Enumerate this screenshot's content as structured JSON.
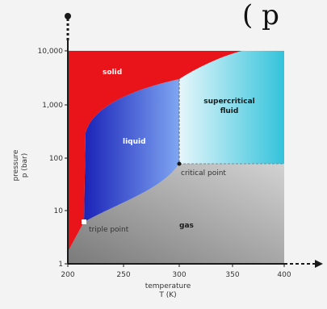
{
  "header_fragment": "( p",
  "diagram": {
    "y_axis": {
      "title_line1": "pressure",
      "title_line2": "p (bar)",
      "ticks": [
        "10,000",
        "1,000",
        "100",
        "10",
        "1"
      ]
    },
    "x_axis": {
      "title_line1": "temperature",
      "title_line2": "T (K)",
      "ticks": [
        "200",
        "250",
        "300",
        "350",
        "400"
      ]
    },
    "regions": {
      "solid": "solid",
      "liquid": "liquid",
      "supercritical_line1": "supercritical",
      "supercritical_line2": "fluid",
      "gas": "gas"
    },
    "points": {
      "critical": "critical point",
      "triple": "triple point"
    },
    "colors": {
      "solid": "#e8141a",
      "liquid_dark": "#1a23b8",
      "liquid_light": "#7fa6f2",
      "supercritical_light": "#e6f6fb",
      "supercritical_dark": "#33c3db",
      "gas_dark": "#7a7a7a",
      "gas_light": "#d2d2d2",
      "axis": "#1a1a1a"
    }
  }
}
